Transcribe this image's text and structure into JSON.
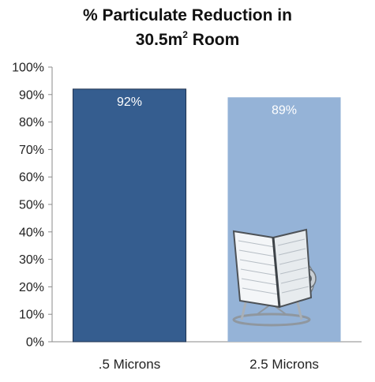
{
  "title": {
    "line1": "% Particulate Reduction in",
    "line2_pre": "30.5m",
    "line2_sup": "2",
    "line2_post": " Room"
  },
  "chart_data": {
    "type": "bar",
    "categories": [
      ".5 Microns",
      "2.5 Microns"
    ],
    "values": [
      92,
      89
    ],
    "data_labels": [
      "92%",
      "89%"
    ],
    "ylim": [
      0,
      100
    ],
    "y_ticks": [
      0,
      10,
      20,
      30,
      40,
      50,
      60,
      70,
      80,
      90,
      100
    ],
    "y_tick_labels": [
      "0%",
      "10%",
      "20%",
      "30%",
      "40%",
      "50%",
      "60%",
      "70%",
      "80%",
      "90%",
      "100%"
    ],
    "xlabel": "",
    "ylabel": "",
    "grid": false,
    "colors": [
      "#355d8f",
      "#95b3d7"
    ],
    "illustration": "air-purifier-icon"
  }
}
